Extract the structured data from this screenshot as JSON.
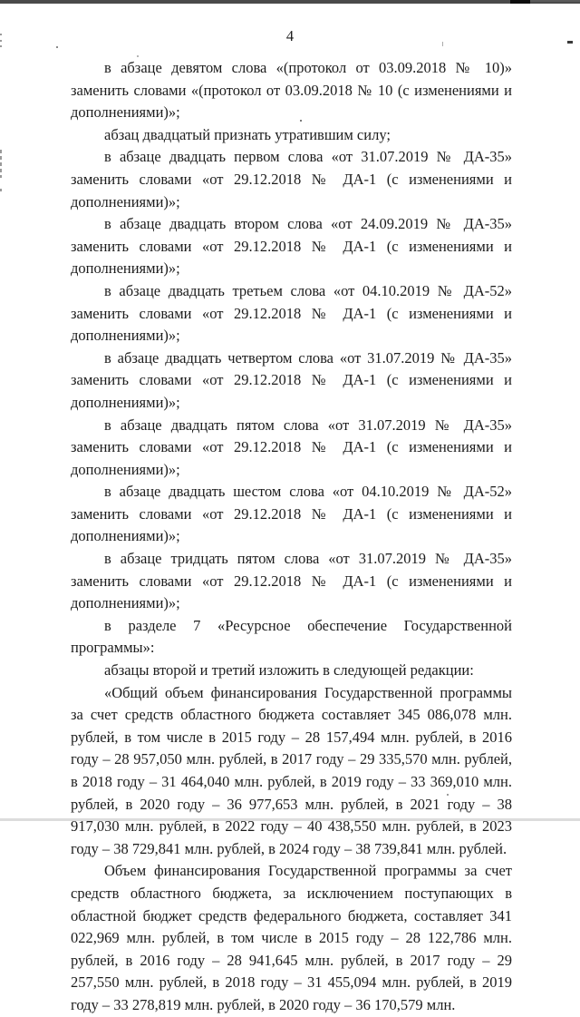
{
  "document": {
    "page_number": "4",
    "paragraphs": [
      "в абзаце девятом слова «(протокол от 03.09.2018 № 10)» заменить словами «(протокол от 03.09.2018 № 10 (с изменениями и дополнениями)»;",
      "абзац двадцатый признать утратившим силу;",
      "в абзаце двадцать первом слова «от 31.07.2019 № ДА-35» заменить словами «от 29.12.2018 № ДА-1 (с изменениями и дополнениями)»;",
      "в абзаце двадцать втором слова «от 24.09.2019 № ДА-35» заменить словами «от 29.12.2018 № ДА-1 (с изменениями и дополнениями)»;",
      "в абзаце двадцать третьем слова «от 04.10.2019 № ДА-52» заменить словами «от 29.12.2018 № ДА-1 (с изменениями и дополнениями)»;",
      "в абзаце двадцать четвертом слова «от 31.07.2019 № ДА-35» заменить словами «от 29.12.2018 № ДА-1 (с изменениями и дополнениями)»;",
      "в абзаце двадцать пятом слова «от 31.07.2019 № ДА-35» заменить словами «от 29.12.2018 № ДА-1 (с изменениями и дополнениями)»;",
      "в абзаце двадцать шестом слова «от 04.10.2019 № ДА-52» заменить словами «от 29.12.2018 № ДА-1 (с изменениями и дополнениями)»;",
      "в абзаце тридцать пятом слова «от 31.07.2019 № ДА-35» заменить словами «от 29.12.2018 № ДА-1 (с изменениями и дополнениями)»;",
      "в разделе 7 «Ресурсное обеспечение Государственной программы»:",
      "абзацы второй и третий изложить в следующей редакции:",
      "«Общий объем финансирования Государственной программы за счет средств областного бюджета составляет 345 086,078 млн. рублей, в том числе в 2015 году – 28 157,494 млн. рублей, в 2016 году – 28 957,050 млн. рублей, в 2017 году – 29 335,570 млн. рублей, в 2018 году – 31 464,040 млн. рублей, в 2019 году – 33 369,010 млн. рублей, в 2020 году – 36 977,653 млн. рублей, в 2021 году – 38 917,030 млн. рублей, в 2022 году – 40 438,550 млн. рублей, в 2023 году – 38 729,841 млн. рублей, в 2024 году – 38 739,841 млн. рублей.",
      "Объем финансирования Государственной программы за счет средств областного бюджета, за исключением поступающих в областной бюджет средств федерального бюджета, составляет 341 022,969 млн. рублей, в том числе в 2015 году – 28 122,786 млн. рублей, в 2016 году – 28 941,645 млн. рублей, в 2017 году – 29 257,550 млн. рублей, в 2018 году – 31 455,094 млн. рублей, в 2019 году – 33 278,819 млн. рублей, в 2020 году – 36 170,579 млн."
    ],
    "artifact_colors": {
      "top_bar": "#4a4a4a",
      "top_bar_black_segment": "#0d0d0d",
      "bottom_strip": "#dcdcdc"
    }
  }
}
